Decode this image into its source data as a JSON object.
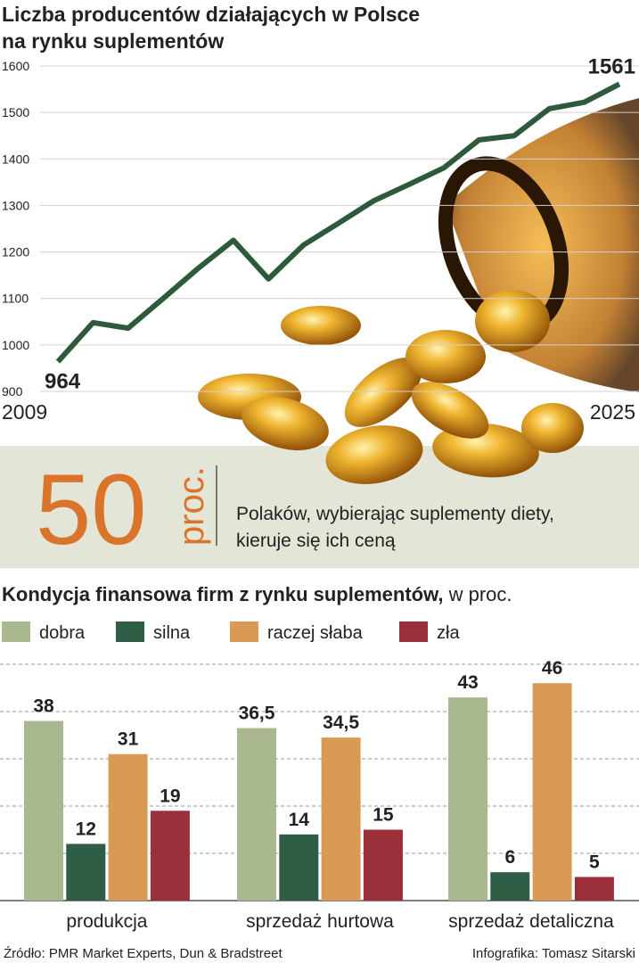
{
  "chart_data": [
    {
      "type": "line",
      "title": [
        "Liczba producentów działających w Polsce",
        "na rynku suplementów"
      ],
      "categories": [
        "2009",
        null,
        null,
        null,
        null,
        null,
        null,
        null,
        null,
        null,
        null,
        null,
        null,
        null,
        null,
        null,
        "2025"
      ],
      "values": [
        964,
        1048,
        1036,
        1100,
        1165,
        1225,
        1142,
        1215,
        1262,
        1310,
        1345,
        1381,
        1441,
        1450,
        1508,
        1522,
        1561
      ],
      "color": "#2d5a3a",
      "ylim": [
        900,
        1600
      ],
      "yticks": [
        900,
        1000,
        1100,
        1200,
        1300,
        1400,
        1500,
        1600
      ],
      "grid": true
    },
    {
      "type": "bar",
      "title": "Kondycja finansowa firm z rynku suplementów,",
      "subtitle": " w proc.",
      "categories": [
        "produkcja",
        "sprzedaż hurtowa",
        "sprzedaż detaliczna"
      ],
      "series": [
        {
          "name": "dobra",
          "color": "#a9b88f",
          "values": [
            38,
            36.5,
            43
          ],
          "value_labels": [
            "38",
            "36,5",
            "43"
          ]
        },
        {
          "name": "silna",
          "color": "#2e5e45",
          "values": [
            12,
            14,
            6
          ]
        },
        {
          "name": "raczej słaba",
          "color": "#d99a55",
          "values": [
            31,
            34.5,
            46
          ],
          "value_labels": [
            "31",
            "34,5",
            "46"
          ]
        },
        {
          "name": "zła",
          "color": "#9a2f3a",
          "values": [
            19,
            15,
            5
          ]
        }
      ],
      "ylim": [
        0,
        50
      ],
      "yticks": [
        0,
        10,
        20,
        30,
        40,
        50
      ],
      "grid": true
    }
  ],
  "callout": {
    "number": 50,
    "unit": "proc.",
    "text": [
      "Polaków, wybierając suplementy diety,",
      "kieruje się ich ceną"
    ]
  },
  "footer": {
    "source": "Źródło: PMR Market Experts, Dun & Bradstreet",
    "credit": "Infografika: Tomasz Sitarski"
  }
}
